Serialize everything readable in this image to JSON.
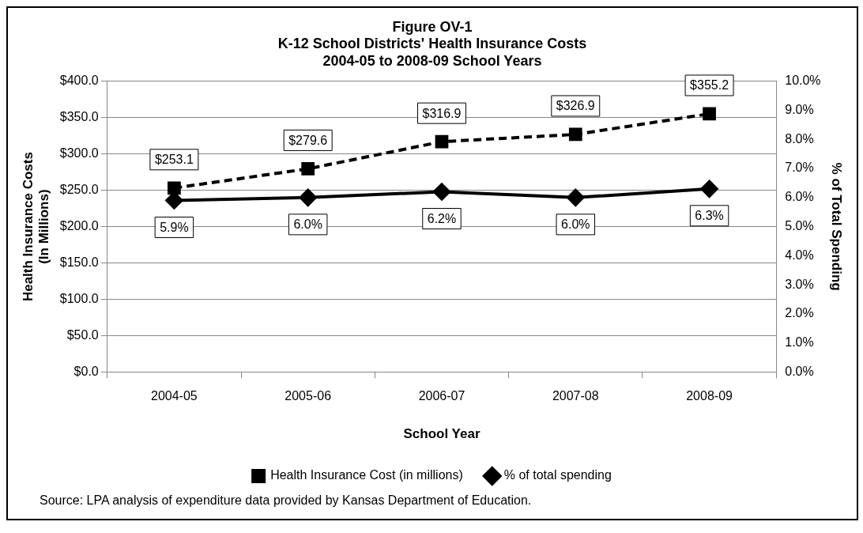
{
  "chart_data": {
    "type": "line",
    "title": "Figure OV-1",
    "subtitle": "K-12 School Districts' Health Insurance Costs\n2004-05 to 2008-09 School Years",
    "xlabel": "School Year",
    "ylabel": "Health Insurance Costs\n(In Millions)",
    "y2label": "% of Total Spending",
    "categories": [
      "2004-05",
      "2005-06",
      "2006-07",
      "2007-08",
      "2008-09"
    ],
    "series": [
      {
        "name": "Health Insurance Cost (in millions)",
        "color": "#000000",
        "values": [
          253.1,
          279.6,
          316.9,
          326.9,
          355.2
        ],
        "marker": "square",
        "line_style": "dashed",
        "value_labels": [
          "$253.1",
          "$279.6",
          "$316.9",
          "$326.9",
          "$355.2"
        ]
      },
      {
        "name": "% of total spending",
        "color": "#000000",
        "values": [
          5.9,
          6.0,
          6.2,
          6.0,
          6.3
        ],
        "axis": "y2",
        "marker": "diamond",
        "line_style": "solid",
        "value_labels": [
          "5.9%",
          "6.0%",
          "6.2%",
          "6.0%",
          "6.3%"
        ]
      }
    ],
    "ylim": [
      0,
      400
    ],
    "yticks": [
      {
        "value": 0,
        "label": "$0.0"
      },
      {
        "value": 50,
        "label": "$50.0"
      },
      {
        "value": 100,
        "label": "$100.0"
      },
      {
        "value": 150,
        "label": "$150.0"
      },
      {
        "value": 200,
        "label": "$200.0"
      },
      {
        "value": 250,
        "label": "$250.0"
      },
      {
        "value": 300,
        "label": "$300.0"
      },
      {
        "value": 350,
        "label": "$350.0"
      },
      {
        "value": 400,
        "label": "$400.0"
      }
    ],
    "y2lim": [
      0,
      10
    ],
    "y2ticks": [
      {
        "value": 0,
        "label": "0.0%"
      },
      {
        "value": 1,
        "label": "1.0%"
      },
      {
        "value": 2,
        "label": "2.0%"
      },
      {
        "value": 3,
        "label": "3.0%"
      },
      {
        "value": 4,
        "label": "4.0%"
      },
      {
        "value": 5,
        "label": "5.0%"
      },
      {
        "value": 6,
        "label": "6.0%"
      },
      {
        "value": 7,
        "label": "7.0%"
      },
      {
        "value": 8,
        "label": "8.0%"
      },
      {
        "value": 9,
        "label": "9.0%"
      },
      {
        "value": 10,
        "label": "10.0%"
      }
    ],
    "grid": "y",
    "legend": "bottom",
    "annotations": [
      "Source:  LPA analysis of expenditure data provided by Kansas Department of Education."
    ]
  }
}
